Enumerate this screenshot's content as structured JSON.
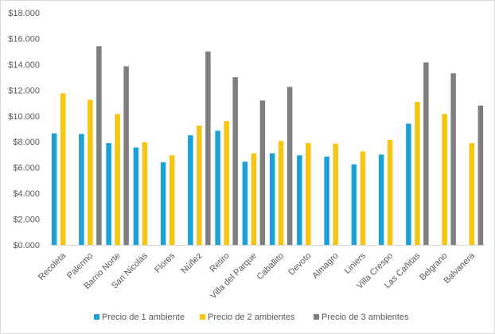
{
  "chart_data": {
    "type": "bar",
    "categories": [
      "Recoleta",
      "Palermo",
      "Barrio Norte",
      "San Nicolás",
      "Flores",
      "Núñez",
      "Retiro",
      "Villa del Parque",
      "Caballito",
      "Devoto",
      "Almagro",
      "Liniers",
      "Villa Crespo",
      "Las Cañitas",
      "Belgrano",
      "Balvanera"
    ],
    "series": [
      {
        "name": "Precio de 1 ambiente",
        "color": "#1ba1d8",
        "values": [
          8650,
          8600,
          7900,
          7550,
          6400,
          8500,
          8850,
          6450,
          7100,
          6950,
          6850,
          6250,
          7000,
          9400,
          null,
          null
        ]
      },
      {
        "name": "Precio de 2 ambientes",
        "color": "#f6c512",
        "values": [
          11750,
          11250,
          10150,
          7950,
          6950,
          9250,
          9600,
          7100,
          8050,
          7900,
          7850,
          7250,
          8150,
          11100,
          10150,
          7900
        ]
      },
      {
        "name": "Precio de 3 ambientes",
        "color": "#7f7f7f",
        "values": [
          null,
          15400,
          13850,
          null,
          null,
          15000,
          13000,
          11200,
          12250,
          null,
          null,
          null,
          null,
          14150,
          13300,
          10800
        ]
      }
    ],
    "y_ticks": [
      "$0.000",
      "$2.000",
      "$4.000",
      "$6.000",
      "$8.000",
      "$10.000",
      "$12.000",
      "$14.000",
      "$16.000",
      "$18.000"
    ],
    "ylim": [
      0,
      18000
    ],
    "y_step": 2000,
    "grid": false,
    "legend_position": "bottom"
  }
}
